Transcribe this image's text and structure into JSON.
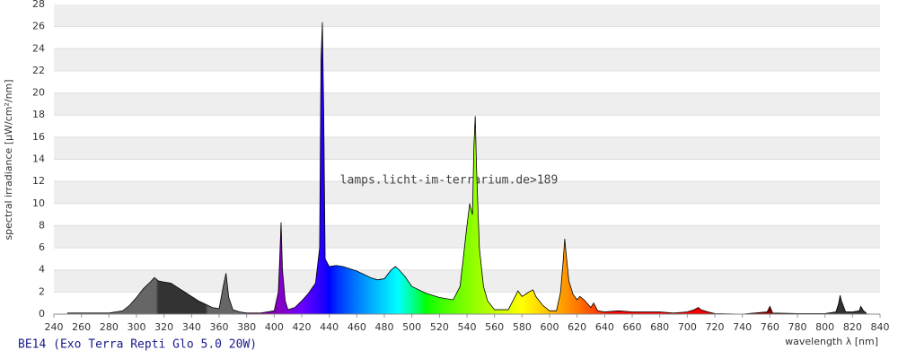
{
  "chart_data": {
    "type": "area",
    "caption": "BE14 (Exo Terra Repti Glo 5.0 20W)",
    "annotation": "lamps.licht-im-terrarium.de>189",
    "y_label": "spectral irradiance [µW/cm²/nm]",
    "x_label": "wavelength λ [nm]",
    "xlim": [
      240,
      840
    ],
    "ylim": [
      0,
      28
    ],
    "xticks": [
      240,
      260,
      280,
      300,
      320,
      340,
      360,
      380,
      400,
      420,
      440,
      460,
      480,
      500,
      520,
      540,
      560,
      580,
      600,
      620,
      640,
      660,
      680,
      700,
      720,
      740,
      760,
      780,
      800,
      820,
      840
    ],
    "yticks": [
      0,
      2,
      4,
      6,
      8,
      10,
      12,
      14,
      16,
      18,
      20,
      22,
      24,
      26,
      28
    ],
    "grid": true,
    "x": [
      250,
      260,
      270,
      280,
      290,
      295,
      300,
      305,
      310,
      313,
      316,
      320,
      325,
      330,
      335,
      340,
      345,
      350,
      355,
      360,
      363,
      365,
      367,
      370,
      375,
      380,
      390,
      400,
      403,
      404,
      405,
      406,
      408,
      410,
      415,
      420,
      425,
      430,
      433,
      434,
      435,
      436,
      437,
      440,
      445,
      450,
      455,
      460,
      465,
      470,
      475,
      480,
      485,
      488,
      490,
      495,
      500,
      510,
      520,
      530,
      535,
      540,
      542,
      544,
      545,
      546,
      547,
      549,
      552,
      555,
      560,
      570,
      575,
      577,
      580,
      585,
      588,
      590,
      595,
      600,
      605,
      608,
      610,
      611,
      612,
      614,
      617,
      620,
      622,
      625,
      630,
      632,
      635,
      640,
      650,
      660,
      670,
      680,
      690,
      700,
      705,
      708,
      710,
      715,
      720,
      740,
      758,
      760,
      762,
      780,
      800,
      808,
      810,
      811,
      812,
      815,
      820,
      825,
      826,
      828,
      830
    ],
    "values": [
      0.1,
      0.1,
      0.1,
      0.1,
      0.3,
      0.8,
      1.5,
      2.3,
      2.9,
      3.3,
      3.0,
      2.9,
      2.8,
      2.4,
      2.0,
      1.6,
      1.2,
      0.9,
      0.6,
      0.5,
      2.5,
      3.7,
      1.5,
      0.4,
      0.2,
      0.1,
      0.1,
      0.3,
      2,
      5,
      8.3,
      4,
      1.2,
      0.4,
      0.6,
      1.2,
      1.9,
      2.8,
      6,
      23,
      26.4,
      18,
      5,
      4.3,
      4.4,
      4.3,
      4.1,
      3.9,
      3.6,
      3.3,
      3.1,
      3.2,
      4.0,
      4.3,
      4.1,
      3.4,
      2.5,
      1.9,
      1.5,
      1.3,
      2.5,
      8,
      10,
      9,
      15,
      17.9,
      13,
      6,
      2.5,
      1.2,
      0.4,
      0.4,
      1.6,
      2.1,
      1.6,
      2.0,
      2.2,
      1.6,
      0.8,
      0.3,
      0.3,
      2,
      5,
      6.8,
      5.5,
      3,
      1.8,
      1.3,
      1.6,
      1.3,
      0.6,
      1.0,
      0.3,
      0.2,
      0.3,
      0.2,
      0.2,
      0.2,
      0.1,
      0.2,
      0.4,
      0.6,
      0.4,
      0.2,
      0.05,
      0,
      0.2,
      0.7,
      0.1,
      0.05,
      0.05,
      0.2,
      1.0,
      1.7,
      1.2,
      0.2,
      0.2,
      0.3,
      0.7,
      0.3,
      0.1
    ]
  }
}
